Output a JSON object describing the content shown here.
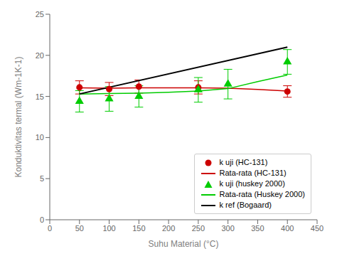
{
  "chart_data": {
    "type": "scatter",
    "xlabel": "Suhu Material (°C)",
    "ylabel": "Konduktivitas termal (Wm-1K-1)",
    "xlim": [
      0,
      450
    ],
    "ylim": [
      0,
      25
    ],
    "xticks": [
      0,
      50,
      100,
      150,
      200,
      250,
      300,
      350,
      400,
      450
    ],
    "yticks": [
      0,
      5,
      10,
      15,
      20,
      25
    ],
    "grid": false,
    "legend": "lower right",
    "series": [
      {
        "name": "k uji (HC-131)",
        "type": "scatter",
        "marker": "circle",
        "color": "#cc0000",
        "x": [
          50,
          100,
          150,
          250,
          400
        ],
        "values": [
          16.1,
          15.9,
          16.2,
          16.1,
          15.6
        ],
        "yerr": [
          0.8,
          0.8,
          0.8,
          0.8,
          0.7
        ]
      },
      {
        "name": "Rata-rata (HC-131)",
        "type": "line",
        "color": "#cc0000",
        "x": [
          50,
          100,
          150,
          200,
          250,
          300,
          350,
          400
        ],
        "values": [
          16.05,
          16.0,
          16.05,
          16.05,
          16.05,
          16.0,
          15.85,
          15.65
        ]
      },
      {
        "name": "k uji (huskey 2000)",
        "type": "scatter",
        "marker": "triangle",
        "color": "#00cc00",
        "x": [
          50,
          100,
          150,
          250,
          300,
          400
        ],
        "values": [
          14.4,
          14.7,
          15.0,
          15.8,
          16.5,
          19.2
        ],
        "yerr": [
          1.3,
          1.5,
          1.3,
          1.5,
          1.8,
          1.5
        ]
      },
      {
        "name": "Rata-rata (Huskey 2000)",
        "type": "line",
        "color": "#00cc00",
        "x": [
          50,
          100,
          150,
          200,
          250,
          300,
          350,
          400
        ],
        "values": [
          15.3,
          15.35,
          15.4,
          15.5,
          15.65,
          15.95,
          16.8,
          17.6
        ]
      },
      {
        "name": "k ref (Bogaard)",
        "type": "line",
        "color": "#000000",
        "x": [
          50,
          400
        ],
        "values": [
          15.3,
          21.0
        ]
      }
    ]
  }
}
